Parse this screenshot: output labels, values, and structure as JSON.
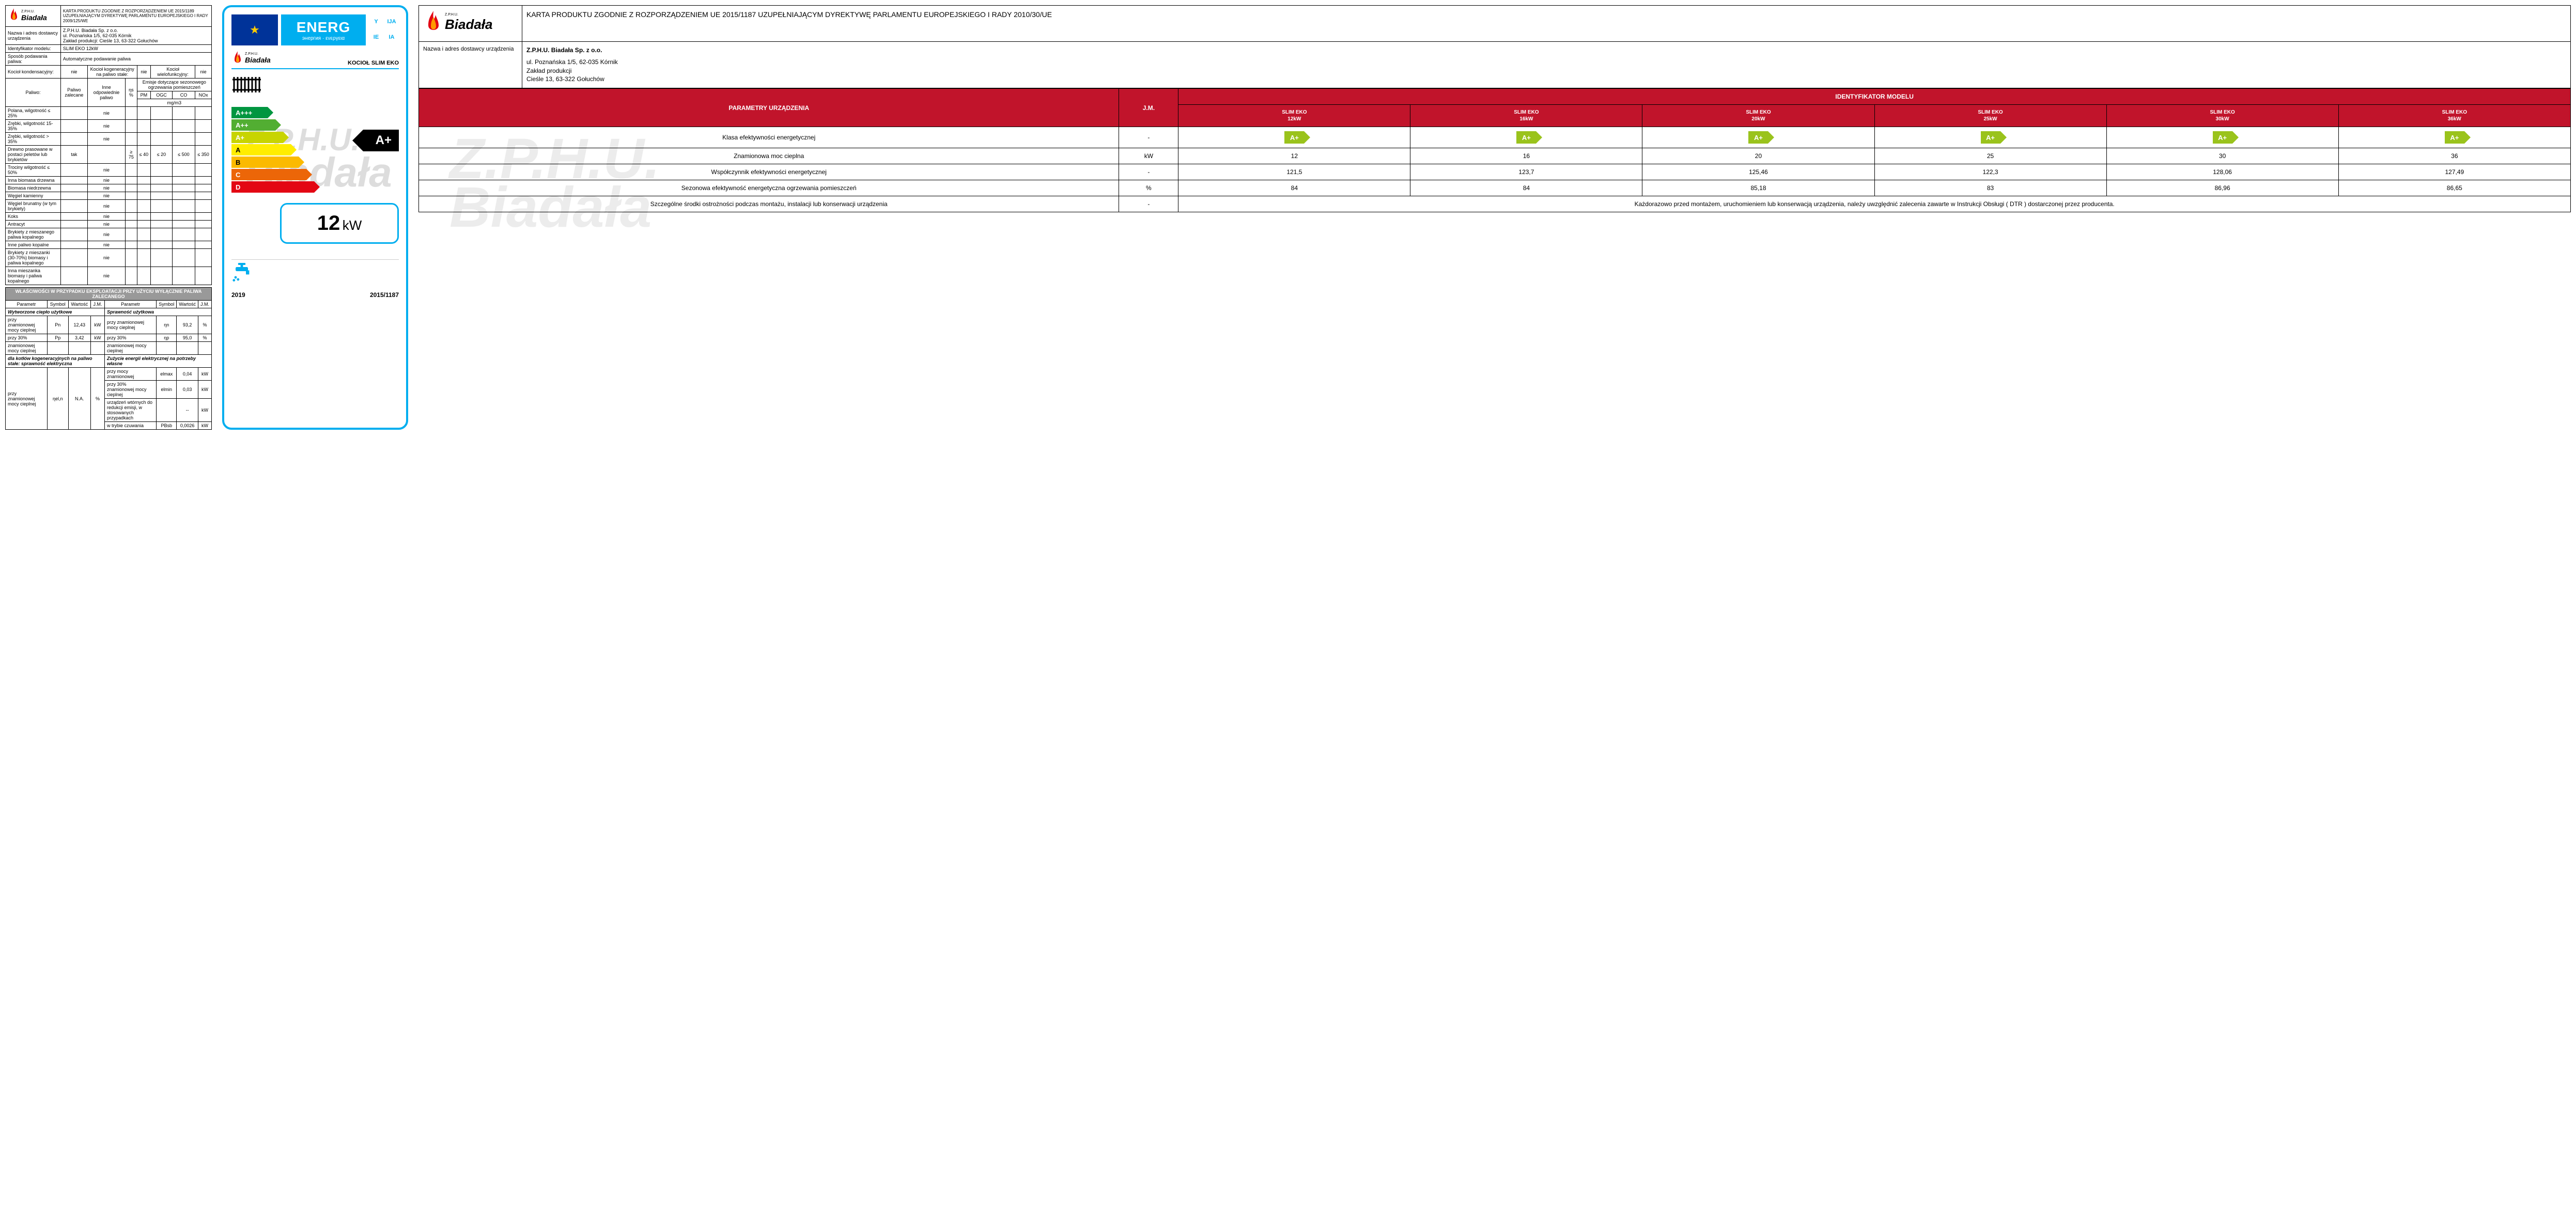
{
  "brand": {
    "small_top": "Z.P.H.U.",
    "name": "Biadała"
  },
  "left": {
    "header_text": "KARTA PRODUKTU ZGODNIE Z ROZPORZĄDZENIEM UE 2015/1189 UZUPEŁNIAJĄCYM DYREKTYWĘ PARLAMENTU EUROPEJSKIEGO I RADY 2009/125/WE",
    "row_supplier_label": "Nazwa i adres dostawcy urządzenia",
    "row_supplier_value": "Z.P.H.U. Biadała Sp. z o.o.\nul. Poznańska 1/5, 62-035 Kórnik\nZakład produkcji: Cieśle 13, 63-322 Gołuchów",
    "row_model_label": "Identyfikator modelu:",
    "row_model_value": "SLIM EKO 12kW",
    "row_feed_label": "Sposób podawania paliwa:",
    "row_feed_value": "Automatyczne podawanie paliwa",
    "row_boilertype": {
      "cond_lbl": "Kocioł kondensacyjny:",
      "cond_val": "nie",
      "cogen_lbl": "Kocioł kogeneracyjny na paliwo stałe:",
      "cogen_val": "nie",
      "multi_lbl": "Kocioł wielofunkcyjny:",
      "multi_val": "nie"
    },
    "fuel_header": {
      "lbl": "Paliwo:",
      "col1": "Paliwo zalecane",
      "col2": "Inne odpowiednie paliwo",
      "col3": "ηs %",
      "col4_top": "Emisje dotyczące sezonowego ogrzewania pomieszczeń",
      "e1": "PM",
      "e2": "OGC",
      "e3": "CO",
      "e4": "NOx",
      "unit": "mg/m3"
    },
    "fuel_rows": [
      {
        "n": "Polana, wilgotność ≤ 25%",
        "c2": "nie"
      },
      {
        "n": "Zrębki, wilgotność 15-35%",
        "c2": "nie"
      },
      {
        "n": "Zrębki, wilgotność > 35%",
        "c2": "nie"
      },
      {
        "n": "Drewno prasowane w postaci peletów lub brykietów",
        "c1": "tak",
        "c3": "≥ 75",
        "e1": "≤ 40",
        "e2": "≤ 20",
        "e3": "≤ 500",
        "e4": "≤ 350"
      },
      {
        "n": "Trociny wilgotność ≤ 50%",
        "c2": "nie"
      },
      {
        "n": "Inna biomasa drzewna",
        "c2": "nie"
      },
      {
        "n": "Biomasa niedrzewna",
        "c2": "nie"
      },
      {
        "n": "Węgiel kamienny",
        "c2": "nie"
      },
      {
        "n": "Węgiel brunatny (w tym brykiety)",
        "c2": "nie"
      },
      {
        "n": "Koks",
        "c2": "nie"
      },
      {
        "n": "Antracyt",
        "c2": "nie"
      },
      {
        "n": "Brykiety z mieszanego paliwa kopalnego",
        "c2": "nie"
      },
      {
        "n": "Inne paliwo kopalne",
        "c2": "nie"
      },
      {
        "n": "Brykiety z mieszanki (30-70%) biomasy i paliwa kopalnego",
        "c2": "nie"
      },
      {
        "n": "Inna mieszanka biomasy i paliwa kopalnego",
        "c2": "nie"
      }
    ],
    "section_title": "WŁAŚCIWOŚCI W PRZYPADKU EKSPLOATACJI PRZY UŻYCIU WYŁĄCZNIE PALIWA ZALECANEGO",
    "cols": {
      "p": "Parametr",
      "s": "Symbol",
      "w": "Wartość",
      "u": "J.M."
    },
    "sub1": "Wytworzone ciepło użytkowe",
    "sub2": "Sprawność użytkowa",
    "r1": {
      "p": "przy znamionowej mocy cieplnej",
      "s": "Pn",
      "w": "12,43",
      "u": "kW"
    },
    "r2": {
      "p": "przy 30%",
      "s": "Pp",
      "w": "3,42",
      "u": "kW"
    },
    "r3": {
      "p": "znamionowej mocy cieplnej"
    },
    "r4hdr": "dla kotłów kogeneracyjnych na paliwo stałe: sprawność elektryczna",
    "r5": {
      "p": "przy znamionowej mocy cieplnej",
      "s": "ηel,n",
      "w": "N.A.",
      "u": "%"
    },
    "rr1": {
      "p": "przy znamionowej mocy cieplnej",
      "s": "ηn",
      "w": "93,2",
      "u": "%"
    },
    "rr2": {
      "p": "przy 30%",
      "s": "ηp",
      "w": "95,0",
      "u": "%"
    },
    "rr3": {
      "p": "znamionowej mocy cieplnej"
    },
    "sub3": "Zużycie energii elektrycznej na potrzeby własne",
    "rr4": {
      "p": "przy mocy znamionowej",
      "s": "elmax",
      "w": "0,04",
      "u": "kW"
    },
    "rr5": {
      "p": "przy 30% znamionowej mocy cieplnej",
      "s": "elmin",
      "w": "0,03",
      "u": "kW"
    },
    "rr6": {
      "p": "urządzeń wtórnych do redukcji emisji, w stosowanych przypadkach",
      "s": "",
      "w": "--",
      "u": "kW"
    },
    "rr7": {
      "p": "w trybie czuwania",
      "s": "PBsb",
      "w": "0,0026",
      "u": "kW"
    }
  },
  "middle": {
    "energ": "ENERG",
    "energ_sub": "энергия · ενεργεια",
    "langs": [
      "Y",
      "IJA",
      "IE",
      "IA"
    ],
    "product": "KOCIOŁ SLIM EKO",
    "classes": [
      "A+++",
      "A++",
      "A+",
      "A",
      "B",
      "C",
      "D"
    ],
    "rating": "A+",
    "kw_value": "12",
    "kw_unit": "kW",
    "year": "2019",
    "regulation": "2015/1187"
  },
  "right": {
    "title": "KARTA PRODUKTU ZGODNIE Z ROZPORZĄDZENIEM UE 2015/1187 UZUPEŁNIAJĄCYM DYREKTYWĘ PARLAMENTU EUROPEJSKIEGO I RADY 2010/30/UE",
    "supplier_label": "Nazwa i adres dostawcy urządzenia",
    "supplier_name": "Z.P.H.U. Biadała Sp. z o.o.",
    "supplier_addr": "ul. Poznańska 1/5, 62-035 Kórnik\nZakład produkcji\nCieśle 13, 63-322 Gołuchów",
    "param_hdr": "PARAMETRY URZĄDZENIA",
    "jm_hdr": "J.M.",
    "model_hdr": "IDENTYFIKATOR MODELU",
    "models": [
      "SLIM EKO 12kW",
      "SLIM EKO 16kW",
      "SLIM EKO 20kW",
      "SLIM EKO 25kW",
      "SLIM EKO 30kW",
      "SLIM EKO 36kW"
    ],
    "rows": [
      {
        "label": "Klasa efektywności energetycznej",
        "unit": "-",
        "type": "arrow",
        "vals": [
          "A+",
          "A+",
          "A+",
          "A+",
          "A+",
          "A+"
        ]
      },
      {
        "label": "Znamionowa moc cieplna",
        "unit": "kW",
        "vals": [
          "12",
          "16",
          "20",
          "25",
          "30",
          "36"
        ]
      },
      {
        "label": "Współczynnik efektywności energetycznej",
        "unit": "-",
        "vals": [
          "121,5",
          "123,7",
          "125,46",
          "122,3",
          "128,06",
          "127,49"
        ]
      },
      {
        "label": "Sezonowa efektywność energetyczna ogrzewania pomieszczeń",
        "unit": "%",
        "vals": [
          "84",
          "84",
          "85,18",
          "83",
          "86,96",
          "86,65"
        ]
      }
    ],
    "note_label": "Szczególne środki ostrożności podczas montażu, instalacji lub konserwacji urządzenia",
    "note_unit": "-",
    "note_text": "Każdorazowo przed montażem, uruchomieniem lub konserwacją urządzenia, należy uwzględnić zalecenia zawarte w Instrukcji Obsługi ( DTR ) dostarczonej przez producenta."
  }
}
